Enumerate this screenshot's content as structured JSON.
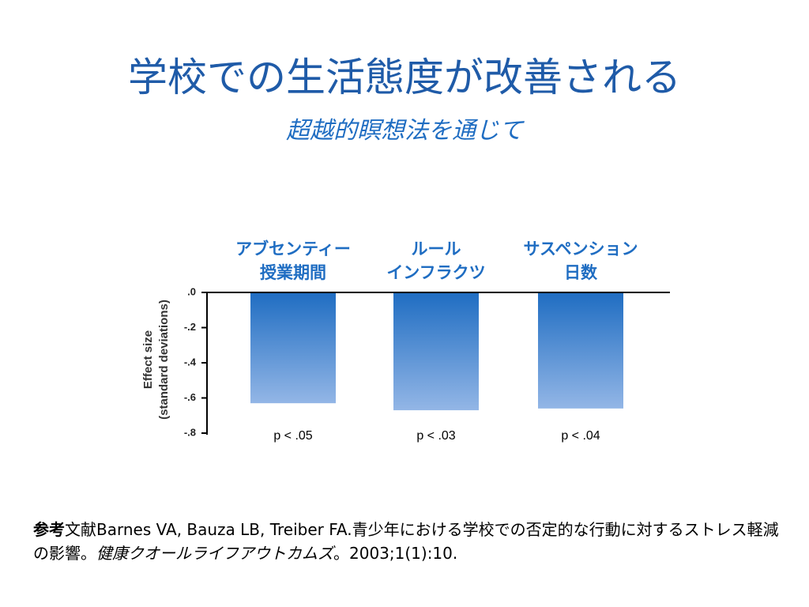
{
  "chart_data": {
    "type": "bar",
    "title": "学校での生活態度が改善される",
    "subtitle": "超越的瞑想法を通じて",
    "ylabel": [
      "Effect size",
      "(standard deviations)"
    ],
    "categories": [
      "アブセンティー\n授業期間",
      "ルール\nインフラクツ",
      "サスペンション\n日数"
    ],
    "values": [
      -0.63,
      -0.67,
      -0.66
    ],
    "annotations": [
      "p < .05",
      "p < .03",
      "p < .04"
    ],
    "color": "#1f6dc2",
    "ylim": [
      -0.8,
      0
    ],
    "yticks": [
      {
        "value": 0,
        "label": ".0"
      },
      {
        "value": -0.2,
        "label": "-.2"
      },
      {
        "value": -0.4,
        "label": "-.4"
      },
      {
        "value": -0.6,
        "label": "-.6"
      },
      {
        "value": -0.8,
        "label": "-.8"
      }
    ]
  },
  "reference": {
    "lead": "参考",
    "text": "文献Barnes VA, Bauza LB, Treiber FA.青少年における学校での否定的な行動に対するストレス軽減の影響。",
    "journal": "健康クオールライフアウトカムズ",
    "tail": "。2003;1(1):10."
  }
}
